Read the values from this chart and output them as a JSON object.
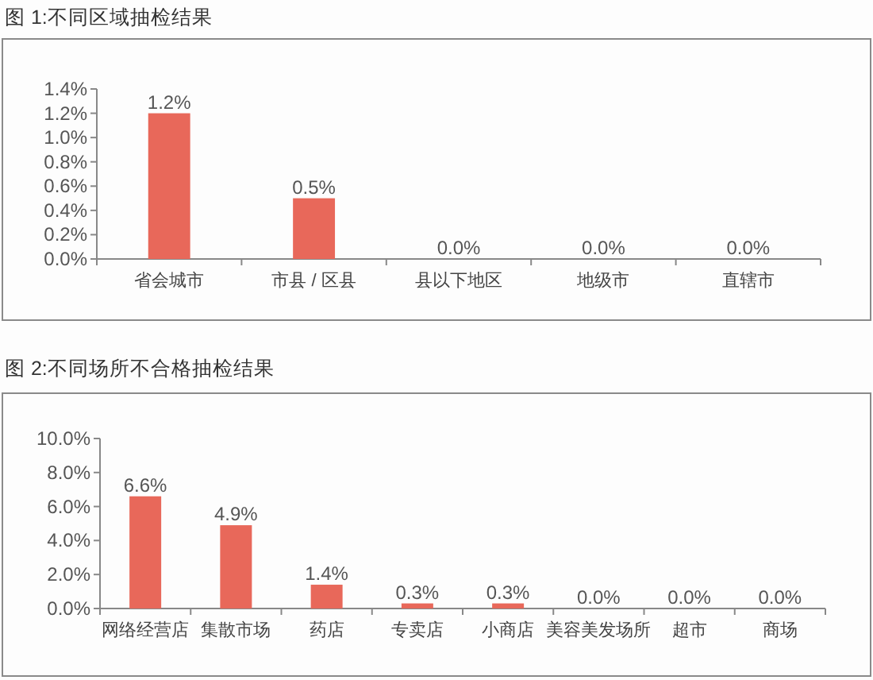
{
  "chart_data": [
    {
      "type": "bar",
      "title": "图 1:不同区域抽检结果",
      "categories": [
        "省会城市",
        "市县 / 区县",
        "县以下地区",
        "地级市",
        "直辖市"
      ],
      "values": [
        1.2,
        0.5,
        0,
        0,
        0
      ],
      "color": "#e8685a",
      "value_labels": [
        "1.2%",
        "0.5%",
        "0.0%",
        "0.0%",
        "0.0%"
      ],
      "ylim": [
        0,
        1.4
      ],
      "yticks": [
        {
          "value": 0,
          "label": "0.0%"
        },
        {
          "value": 0.2,
          "label": "0.2%"
        },
        {
          "value": 0.4,
          "label": "0.4%"
        },
        {
          "value": 0.6,
          "label": "0.6%"
        },
        {
          "value": 0.8,
          "label": "0.8%"
        },
        {
          "value": 1.0,
          "label": "1.0%"
        },
        {
          "value": 1.2,
          "label": "1.2%"
        },
        {
          "value": 1.4,
          "label": "1.4%"
        }
      ]
    },
    {
      "type": "bar",
      "title": "图 2:不同场所不合格抽检结果",
      "categories": [
        "网络经营店",
        "集散市场",
        "药店",
        "专卖店",
        "小商店",
        "美容美发场所",
        "超市",
        "商场"
      ],
      "values": [
        6.6,
        4.9,
        1.4,
        0.3,
        0.3,
        0,
        0,
        0
      ],
      "color": "#e8685a",
      "value_labels": [
        "6.6%",
        "4.9%",
        "1.4%",
        "0.3%",
        "0.3%",
        "0.0%",
        "0.0%",
        "0.0%"
      ],
      "ylim": [
        0,
        10
      ],
      "yticks": [
        {
          "value": 0,
          "label": "0.0%"
        },
        {
          "value": 2,
          "label": "2.0%"
        },
        {
          "value": 4,
          "label": "4.0%"
        },
        {
          "value": 6,
          "label": "6.0%"
        },
        {
          "value": 8,
          "label": "8.0%"
        },
        {
          "value": 10,
          "label": "10.0%"
        }
      ]
    }
  ]
}
